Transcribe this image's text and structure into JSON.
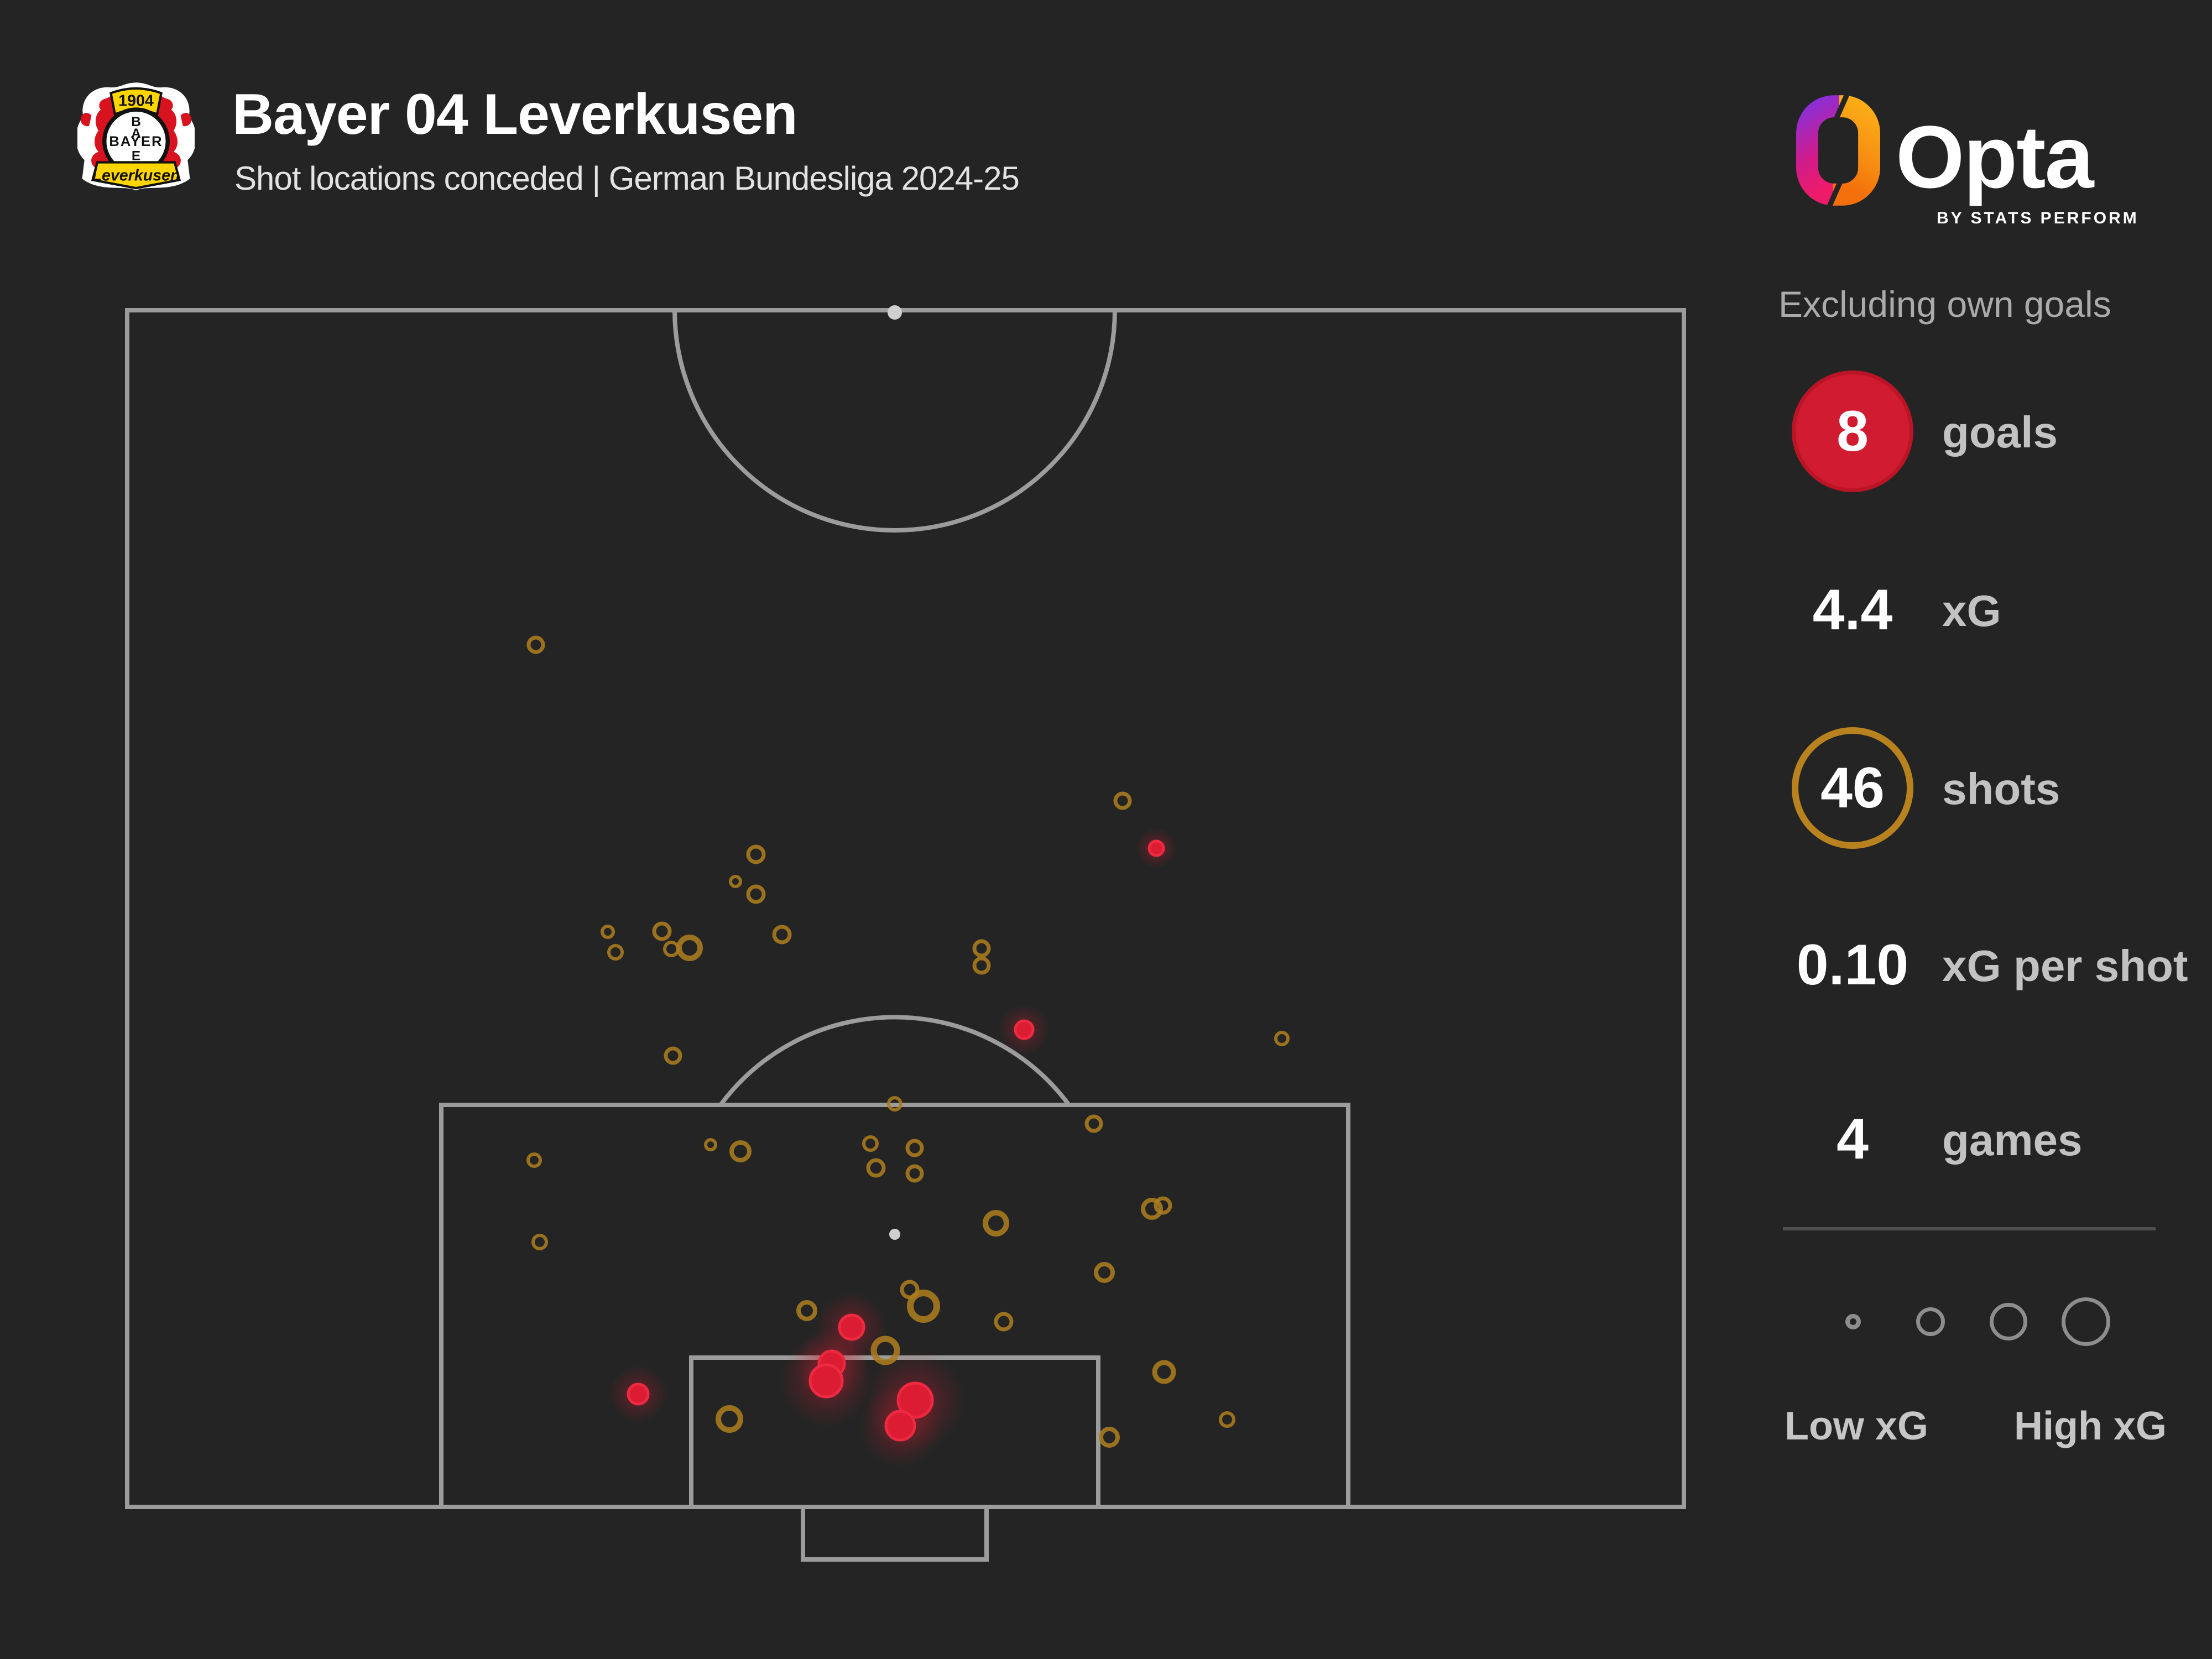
{
  "header": {
    "title": "Bayer 04 Leverkusen",
    "subtitle": "Shot locations conceded | German Bundesliga 2024-25",
    "crest": {
      "year": "1904",
      "cross_word": "BAYER",
      "banner": "Leverkusen"
    }
  },
  "opta": {
    "wordmark": "Opta",
    "tagline": "BY STATS PERFORM"
  },
  "panel": {
    "note": "Excluding own goals",
    "stats": [
      {
        "value": "8",
        "label": "goals",
        "badge": "goal-circle"
      },
      {
        "value": "4.4",
        "label": "xG",
        "badge": "none"
      },
      {
        "value": "46",
        "label": "shots",
        "badge": "amber-ring"
      },
      {
        "value": "0.10",
        "label": "xG per shot",
        "badge": "none"
      },
      {
        "value": "4",
        "label": "games",
        "badge": "none"
      }
    ],
    "legend": {
      "low_label": "Low xG",
      "high_label": "High xG",
      "circle_radii": [
        14,
        26,
        34,
        44
      ]
    }
  },
  "colors": {
    "background": "#242424",
    "pitch_line": "#9c9c9c",
    "goal_red": "#dc1c32",
    "goal_red_rim": "#ee2a42",
    "shot_amber": "#ab7c1e",
    "stat_circle_red": "#d01b30",
    "stat_ring_amber": "#b8831f",
    "text_white": "#ffffff",
    "text_gray": "#c2c2c2",
    "note_gray": "#ababab"
  },
  "chart_data": {
    "type": "scatter",
    "title": "Shot locations conceded",
    "description": "Half-pitch shot map, defending goal at bottom. Marker radius is proportional to xG of the chance (legend: Low xG small, High xG large). Red filled markers are goals conceded, amber rings are other shots conceded.",
    "coordinate_space": "pixels of 4000x3000 canvas",
    "marker_format": "[x, y, radius]",
    "legend_position": "bottom-right",
    "goals": [
      [
        2091,
        1534,
        13
      ],
      [
        1852,
        1862,
        16
      ],
      [
        1540,
        2400,
        22
      ],
      [
        1504,
        2466,
        23
      ],
      [
        1494,
        2497,
        29
      ],
      [
        1154,
        2521,
        18
      ],
      [
        1655,
        2532,
        31
      ],
      [
        1628,
        2578,
        26
      ]
    ],
    "shots": [
      [
        969,
        1166,
        13
      ],
      [
        2030,
        1448,
        13
      ],
      [
        1367,
        1545,
        14
      ],
      [
        1330,
        1594,
        9
      ],
      [
        1367,
        1617,
        14
      ],
      [
        1099,
        1685,
        10
      ],
      [
        1113,
        1722,
        12
      ],
      [
        1197,
        1684,
        14
      ],
      [
        1214,
        1716,
        12
      ],
      [
        1247,
        1714,
        19
      ],
      [
        1414,
        1690,
        14
      ],
      [
        1775,
        1715,
        13
      ],
      [
        1775,
        1746,
        13
      ],
      [
        2318,
        1878,
        11
      ],
      [
        1217,
        1909,
        13
      ],
      [
        1618,
        1996,
        11
      ],
      [
        1574,
        2068,
        12
      ],
      [
        1978,
        2032,
        13
      ],
      [
        1339,
        2082,
        16
      ],
      [
        1584,
        2112,
        14
      ],
      [
        1654,
        2076,
        13
      ],
      [
        1654,
        2122,
        13
      ],
      [
        1285,
        2070,
        9
      ],
      [
        966,
        2098,
        11
      ],
      [
        976,
        2246,
        12
      ],
      [
        1801,
        2212,
        19
      ],
      [
        2083,
        2186,
        16
      ],
      [
        2103,
        2180,
        13
      ],
      [
        1997,
        2301,
        15
      ],
      [
        1459,
        2370,
        15
      ],
      [
        1645,
        2332,
        14
      ],
      [
        1670,
        2362,
        24
      ],
      [
        1815,
        2390,
        14
      ],
      [
        1601,
        2442,
        21
      ],
      [
        2105,
        2481,
        17
      ],
      [
        1319,
        2566,
        20
      ],
      [
        2006,
        2599,
        15
      ],
      [
        2219,
        2567,
        12
      ]
    ],
    "summary_stats": {
      "goals": 8,
      "xG": 4.4,
      "shots": 46,
      "xG_per_shot": 0.1,
      "games": 4
    }
  },
  "layout_rows": {
    "centers_y": [
      780,
      1103,
      1425,
      1745,
      2060
    ]
  }
}
